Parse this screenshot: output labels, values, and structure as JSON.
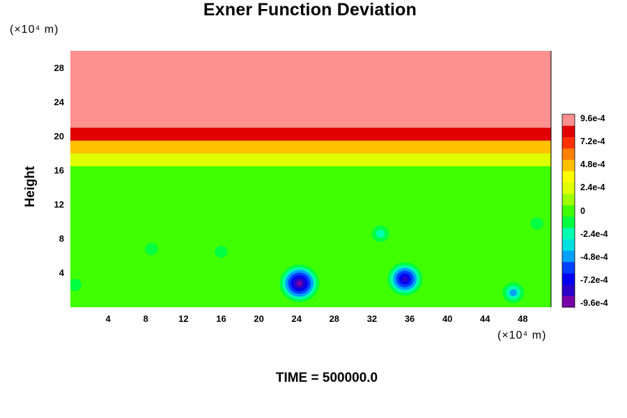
{
  "chart_data": {
    "type": "heatmap",
    "title": "Exner Function Deviation",
    "ylabel": "Height",
    "x_unit": "(×10⁴ m)",
    "y_unit": "(×10⁴ m)",
    "footer": "TIME = 500000.0",
    "xlim": [
      0,
      51
    ],
    "ylim": [
      0,
      30
    ],
    "x_ticks": [
      4,
      8,
      12,
      16,
      20,
      24,
      28,
      32,
      36,
      40,
      44,
      48
    ],
    "y_ticks": [
      4,
      8,
      12,
      16,
      20,
      24,
      28
    ],
    "colorbar": {
      "range": [
        -0.00096,
        0.00096
      ],
      "labels": [
        "9.6e-4",
        "7.2e-4",
        "4.8e-4",
        "2.4e-4",
        "0",
        "-2.4e-4",
        "-4.8e-4",
        "-7.2e-4",
        "-9.6e-4"
      ],
      "colors": [
        "#7a00a8",
        "#2a00c8",
        "#0000f0",
        "#0040ff",
        "#00a0ff",
        "#00e0e0",
        "#00ffb0",
        "#00ff40",
        "#40ff00",
        "#a0ff00",
        "#e0ff00",
        "#ffff00",
        "#ffc000",
        "#ff8000",
        "#ff3000",
        "#e00000",
        "#ff9090"
      ]
    },
    "field": {
      "background_value": -4e-05,
      "upper_layer_value": 0.00096,
      "upper_layer_bottom": 21.2,
      "bands": [
        {
          "height": 21.0,
          "value": 0.00085
        },
        {
          "height": 19.5,
          "value": 0.00075
        },
        {
          "height": 18.0,
          "value": 0.00045
        },
        {
          "height": 16.5,
          "value": 0.00018
        },
        {
          "height": 14.0,
          "value": 2e-05
        },
        {
          "height": 11.0,
          "value": -4e-05
        }
      ],
      "anomalies": [
        {
          "x": 24.3,
          "y": 2.8,
          "value": -0.00085
        },
        {
          "x": 35.5,
          "y": 3.3,
          "value": -0.0007
        },
        {
          "x": 47.0,
          "y": 1.7,
          "value": -0.0004
        },
        {
          "x": 32.9,
          "y": 8.6,
          "value": -0.00025
        },
        {
          "x": 0.5,
          "y": 2.6,
          "value": -0.0002
        },
        {
          "x": 8.6,
          "y": 6.8,
          "value": -0.00018
        },
        {
          "x": 49.5,
          "y": 9.8,
          "value": -0.00018
        },
        {
          "x": 16.0,
          "y": 6.5,
          "value": -0.00012
        }
      ]
    }
  }
}
